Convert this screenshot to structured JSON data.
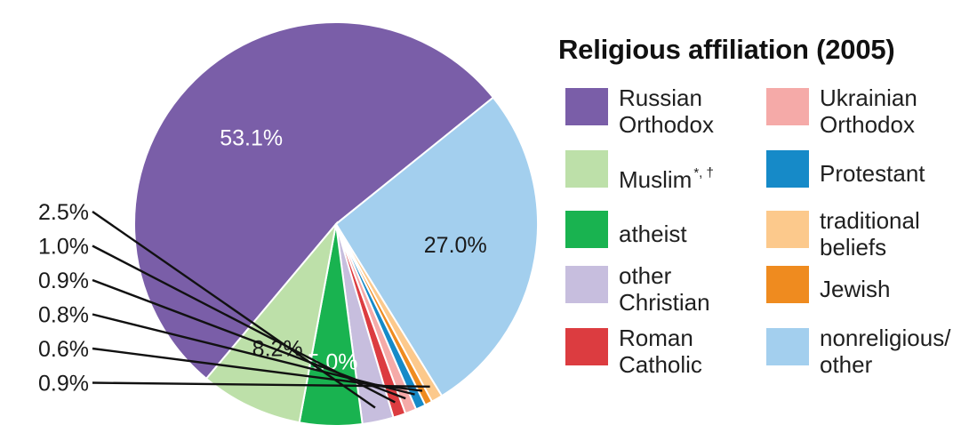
{
  "chart_data": {
    "type": "pie",
    "title": "Religious affiliation (2005)",
    "start_angle_deg": 220,
    "direction": "clockwise",
    "slices": [
      {
        "label": "Russian Orthodox",
        "value": 53.1,
        "display": "53.1%",
        "color": "#7a5ea8",
        "label_color": "#ffffff",
        "label_placement": "inside"
      },
      {
        "label": "nonreligious/ other",
        "value": 27.0,
        "display": "27.0%",
        "color": "#a3cfee",
        "label_color": "#1a1a1a",
        "label_placement": "inside"
      },
      {
        "label": "traditional beliefs",
        "value": 0.9,
        "display": "0.9%",
        "color": "#fcc98c",
        "label_color": "#1a1a1a",
        "label_placement": "outside"
      },
      {
        "label": "Jewish",
        "value": 0.6,
        "display": "0.6%",
        "color": "#ef8b1f",
        "label_color": "#1a1a1a",
        "label_placement": "outside"
      },
      {
        "label": "Protestant",
        "value": 0.8,
        "display": "0.8%",
        "color": "#168ac8",
        "label_color": "#1a1a1a",
        "label_placement": "outside"
      },
      {
        "label": "Ukrainian Orthodox",
        "value": 0.9,
        "display": "0.9%",
        "color": "#f5aaa8",
        "label_color": "#1a1a1a",
        "label_placement": "outside"
      },
      {
        "label": "Roman Catholic",
        "value": 1.0,
        "display": "1.0%",
        "color": "#dc3c40",
        "label_color": "#1a1a1a",
        "label_placement": "outside"
      },
      {
        "label": "other Christian",
        "value": 2.5,
        "display": "2.5%",
        "color": "#c7bede",
        "label_color": "#1a1a1a",
        "label_placement": "outside"
      },
      {
        "label": "atheist",
        "value": 5.0,
        "display": "5.0%",
        "color": "#19b350",
        "label_color": "#ffffff",
        "label_placement": "inside"
      },
      {
        "label": "Muslim",
        "value": 8.2,
        "display": "8.2%",
        "color": "#bde0a9",
        "label_color": "#1a1a1a",
        "label_placement": "inside"
      }
    ],
    "outside_label_order": [
      "2.5%",
      "1.0%",
      "0.9%",
      "0.9%",
      "0.8%",
      "0.6%"
    ],
    "legend": {
      "placement": "right",
      "columns": 2,
      "items": [
        {
          "label": "Russian Orthodox",
          "sup": "",
          "color": "#7a5ea8"
        },
        {
          "label": "Muslim",
          "sup": "*, †",
          "color": "#bde0a9"
        },
        {
          "label": "atheist",
          "sup": "",
          "color": "#19b350"
        },
        {
          "label": "other Christian",
          "sup": "",
          "color": "#c7bede"
        },
        {
          "label": "Roman Catholic",
          "sup": "",
          "color": "#dc3c40"
        },
        {
          "label": "Ukrainian Orthodox",
          "sup": "",
          "color": "#f5aaa8"
        },
        {
          "label": "Protestant",
          "sup": "",
          "color": "#168ac8"
        },
        {
          "label": "traditional beliefs",
          "sup": "",
          "color": "#fcc98c"
        },
        {
          "label": "Jewish",
          "sup": "",
          "color": "#ef8b1f"
        },
        {
          "label": "nonreligious/ other",
          "sup": "",
          "color": "#a3cfee"
        }
      ]
    }
  }
}
